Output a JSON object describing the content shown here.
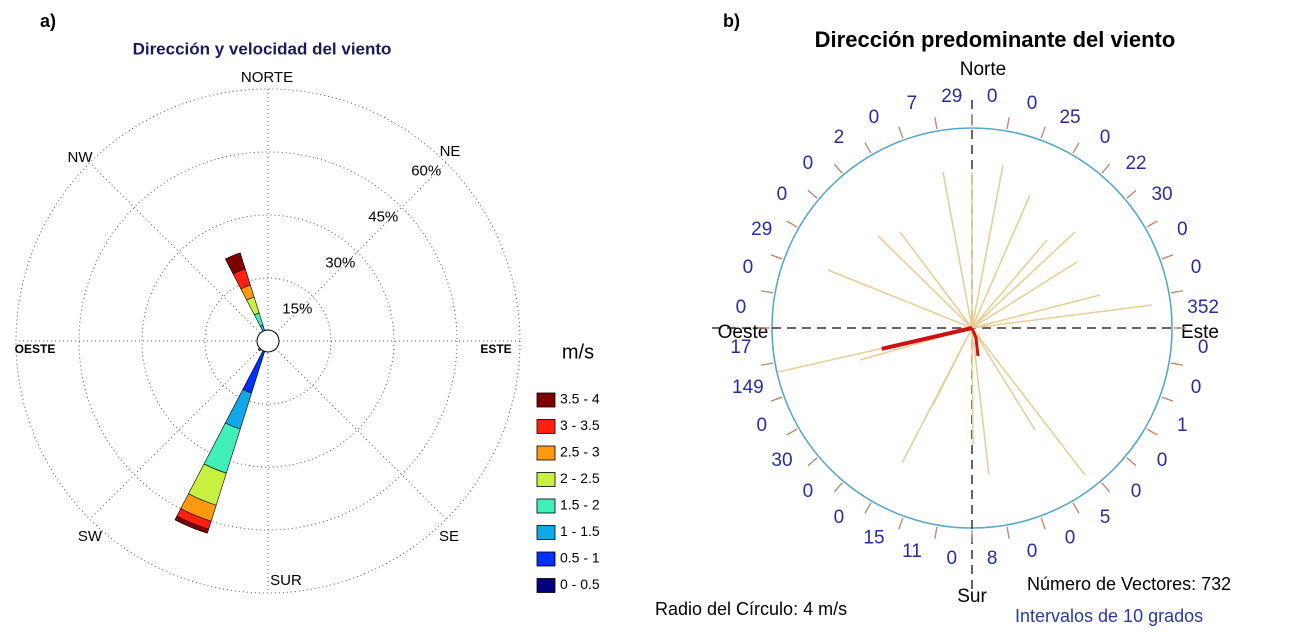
{
  "chart_data": [
    {
      "type": "wind_rose",
      "panel": "a)",
      "title": "Dirección y velocidad del viento",
      "compass": {
        "north": "NORTE",
        "northeast": "NE",
        "east": "ESTE",
        "southeast": "SE",
        "south": "SUR",
        "southwest": "SW",
        "west": "OESTE",
        "northwest": "NW"
      },
      "x": [
        0,
        22.5,
        45,
        67.5,
        90,
        112.5,
        135,
        157.5,
        180,
        202.5,
        225,
        247.5,
        270,
        292.5,
        315,
        337.5
      ],
      "rlim": [
        0,
        60
      ],
      "rticks": [
        {
          "value": 15,
          "label": "15%"
        },
        {
          "value": 30,
          "label": "30%"
        },
        {
          "value": 45,
          "label": "45%"
        },
        {
          "value": 60,
          "label": "60%"
        }
      ],
      "grid": true,
      "legend_title": "m/s",
      "series": [
        {
          "name": "3.5 - 4",
          "color": "#7f0000",
          "values": [
            0,
            0,
            0,
            0,
            0,
            0,
            0,
            0,
            0,
            1,
            0,
            0,
            0,
            0,
            0,
            4
          ]
        },
        {
          "name": "3 - 3.5",
          "color": "#ff2010",
          "values": [
            0,
            0,
            0,
            0,
            0,
            0,
            0,
            0,
            0,
            2,
            0,
            0,
            0,
            0,
            0,
            4
          ]
        },
        {
          "name": "2.5 - 3",
          "color": "#ff9a10",
          "values": [
            0,
            0,
            0,
            0,
            0,
            0,
            0,
            0,
            0,
            4,
            0,
            0,
            0,
            0,
            0,
            3
          ]
        },
        {
          "name": "2 - 2.5",
          "color": "#c8f040",
          "values": [
            0,
            0,
            0,
            0,
            0,
            0,
            0,
            0,
            0,
            8,
            0,
            0,
            0,
            0,
            0,
            4
          ]
        },
        {
          "name": "1.5 - 2",
          "color": "#40f0b8",
          "values": [
            0,
            0,
            0,
            0,
            0,
            0,
            0,
            0,
            0,
            11,
            0.5,
            0,
            0,
            0,
            0,
            3
          ]
        },
        {
          "name": "1 - 1.5",
          "color": "#10a8e8",
          "values": [
            0.5,
            0.5,
            0.5,
            0.5,
            0.5,
            0.2,
            0.2,
            0.5,
            0.5,
            9,
            1,
            0.2,
            0.2,
            0.5,
            0.5,
            2
          ]
        },
        {
          "name": "0.5 - 1",
          "color": "#0030ff",
          "values": [
            1,
            1,
            0.5,
            1,
            1,
            0.5,
            0.5,
            0.5,
            1,
            12,
            1,
            0.5,
            0.5,
            0.5,
            1,
            1
          ]
        },
        {
          "name": "0 - 0.5",
          "color": "#000080",
          "values": [
            0.5,
            0.5,
            0.5,
            0.5,
            0.5,
            0.3,
            0.3,
            0.5,
            0.5,
            1,
            0.5,
            0.3,
            0.3,
            0.5,
            0.5,
            1
          ]
        }
      ]
    },
    {
      "type": "direction_counts",
      "panel": "b)",
      "title": "Dirección predominante del viento",
      "compass": {
        "north": "Norte",
        "east": "Este",
        "south": "Sur",
        "west": "Oeste"
      },
      "x": [
        5,
        15,
        25,
        35,
        45,
        55,
        65,
        75,
        85,
        95,
        105,
        115,
        125,
        135,
        145,
        155,
        165,
        175,
        185,
        195,
        205,
        215,
        225,
        235,
        245,
        255,
        265,
        275,
        285,
        295,
        305,
        315,
        325,
        335,
        345,
        355
      ],
      "values": [
        0,
        0,
        25,
        0,
        22,
        30,
        0,
        0,
        352,
        0,
        0,
        1,
        0,
        0,
        5,
        0,
        0,
        8,
        0,
        11,
        15,
        0,
        0,
        30,
        0,
        149,
        17,
        0,
        0,
        29,
        0,
        0,
        2,
        0,
        7,
        29
      ],
      "rlim": [
        0,
        4
      ],
      "resultant": {
        "direction": 257,
        "speed": 1.85
      },
      "annotations": [
        "Número de Vectores: 732",
        "Radio del Círculo: 4 m/s",
        "Intervalos de 10 grados"
      ]
    }
  ]
}
